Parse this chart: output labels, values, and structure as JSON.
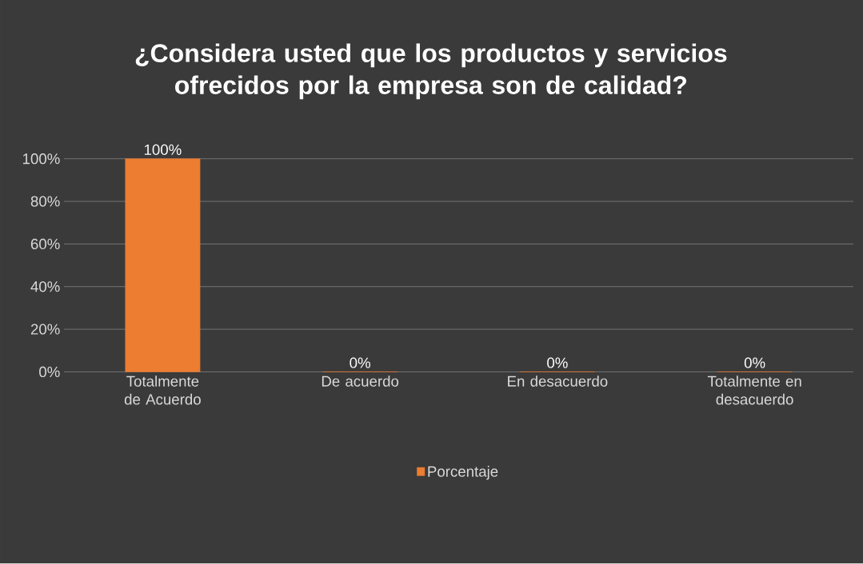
{
  "chart_data": {
    "type": "bar",
    "title": "¿Considera usted que los productos y servicios ofrecidos por la empresa son de calidad?",
    "categories": [
      "Totalmente de Acuerdo",
      "De acuerdo",
      "En desacuerdo",
      "Totalmente en desacuerdo"
    ],
    "series": [
      {
        "name": "Porcentaje",
        "color": "#ed7d31",
        "values": [
          100,
          0,
          0,
          0
        ],
        "value_labels": [
          "100%",
          "0%",
          "0%",
          "0%"
        ]
      }
    ],
    "ylim": [
      0,
      100
    ],
    "yticks": [
      {
        "value": 0,
        "label": "0%"
      },
      {
        "value": 20,
        "label": "20%"
      },
      {
        "value": 40,
        "label": "40%"
      },
      {
        "value": 60,
        "label": "60%"
      },
      {
        "value": 80,
        "label": "80%"
      },
      {
        "value": 100,
        "label": "100%"
      }
    ],
    "grid": "y",
    "legend": "bottom"
  }
}
